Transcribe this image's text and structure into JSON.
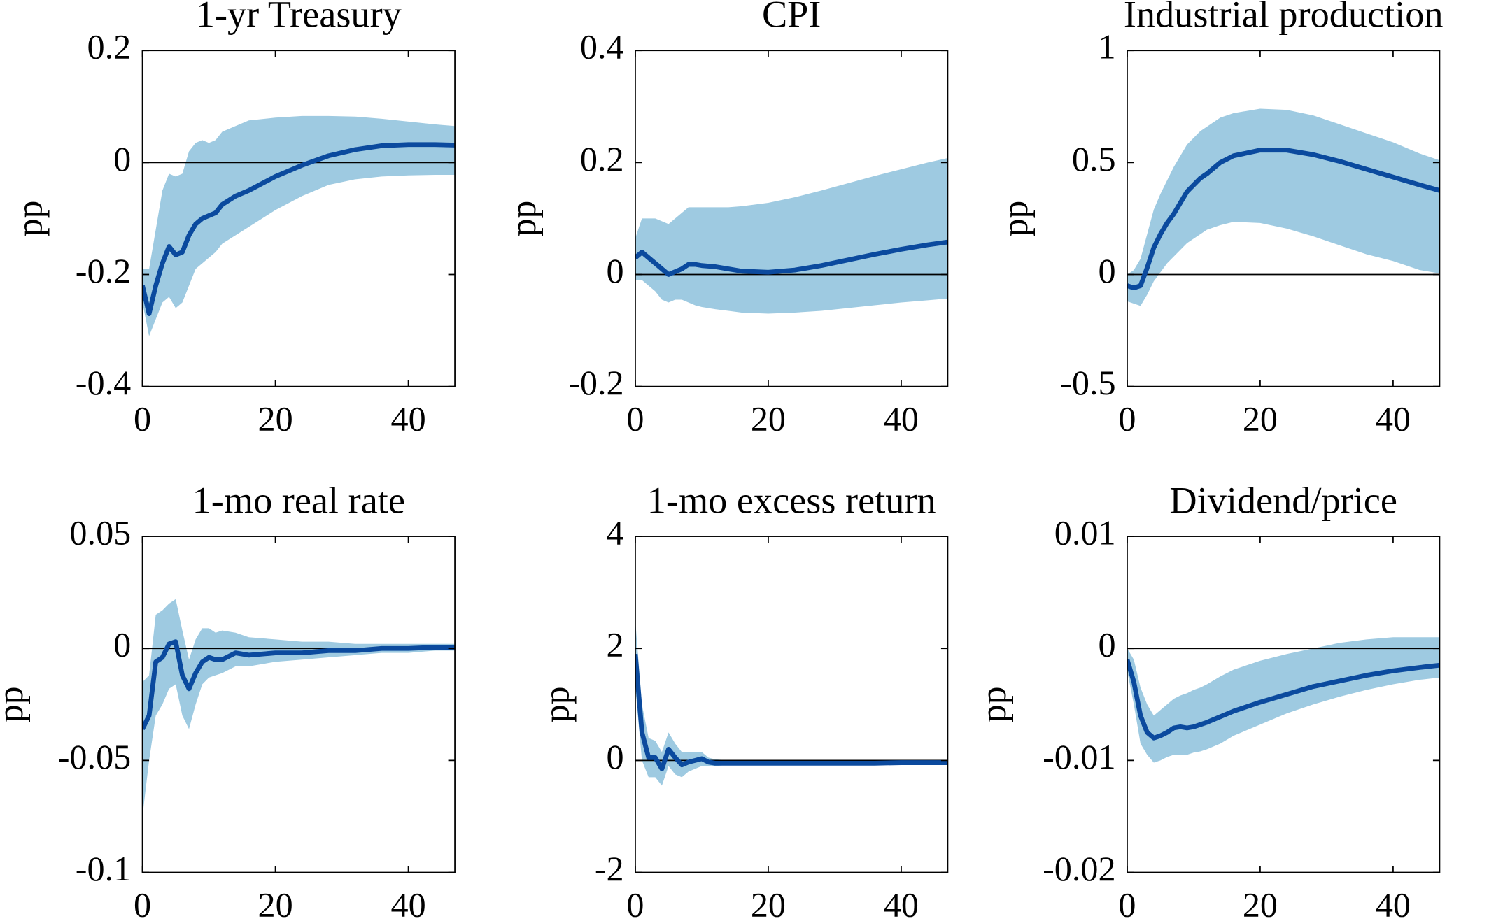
{
  "chart_data": [
    {
      "type": "line",
      "title": "1-yr Treasury",
      "ylabel": "pp",
      "x": [
        0,
        1,
        2,
        3,
        4,
        5,
        6,
        7,
        8,
        9,
        10,
        11,
        12,
        14,
        16,
        20,
        24,
        28,
        32,
        36,
        40,
        44,
        47
      ],
      "xlim": [
        0,
        47
      ],
      "xticks": [
        0,
        20,
        40
      ],
      "ylim": [
        -0.4,
        0.2
      ],
      "yticks": [
        -0.4,
        -0.2,
        0,
        0.2
      ],
      "series": [
        {
          "color": "#0b4a9e",
          "values": [
            -0.22,
            -0.27,
            -0.22,
            -0.18,
            -0.15,
            -0.165,
            -0.16,
            -0.13,
            -0.11,
            -0.1,
            -0.095,
            -0.09,
            -0.075,
            -0.06,
            -0.05,
            -0.025,
            -0.005,
            0.012,
            0.023,
            0.03,
            0.032,
            0.032,
            0.031
          ]
        }
      ],
      "band": {
        "color": "#9ecae1",
        "upper": [
          -0.19,
          -0.19,
          -0.12,
          -0.05,
          -0.02,
          -0.025,
          -0.02,
          0.02,
          0.035,
          0.04,
          0.035,
          0.04,
          0.055,
          0.065,
          0.075,
          0.08,
          0.083,
          0.083,
          0.082,
          0.078,
          0.073,
          0.068,
          0.065
        ],
        "lower": [
          -0.25,
          -0.31,
          -0.28,
          -0.25,
          -0.24,
          -0.26,
          -0.25,
          -0.22,
          -0.19,
          -0.18,
          -0.17,
          -0.16,
          -0.145,
          -0.13,
          -0.115,
          -0.085,
          -0.06,
          -0.04,
          -0.03,
          -0.025,
          -0.023,
          -0.022,
          -0.022
        ]
      }
    },
    {
      "type": "line",
      "title": "CPI",
      "ylabel": "pp",
      "x": [
        0,
        1,
        2,
        3,
        4,
        5,
        6,
        7,
        8,
        9,
        10,
        11,
        12,
        14,
        16,
        20,
        24,
        28,
        32,
        36,
        40,
        44,
        47
      ],
      "xlim": [
        0,
        47
      ],
      "xticks": [
        0,
        20,
        40
      ],
      "ylim": [
        -0.2,
        0.4
      ],
      "yticks": [
        -0.2,
        0,
        0.2,
        0.4
      ],
      "series": [
        {
          "color": "#0b4a9e",
          "values": [
            0.03,
            0.04,
            0.03,
            0.02,
            0.01,
            0.0,
            0.005,
            0.01,
            0.018,
            0.018,
            0.016,
            0.015,
            0.014,
            0.01,
            0.006,
            0.004,
            0.008,
            0.016,
            0.026,
            0.036,
            0.045,
            0.053,
            0.058
          ]
        }
      ],
      "band": {
        "color": "#9ecae1",
        "upper": [
          0.065,
          0.1,
          0.1,
          0.1,
          0.095,
          0.09,
          0.1,
          0.11,
          0.12,
          0.12,
          0.12,
          0.12,
          0.12,
          0.12,
          0.122,
          0.128,
          0.138,
          0.15,
          0.163,
          0.176,
          0.188,
          0.2,
          0.208
        ],
        "lower": [
          -0.01,
          -0.01,
          -0.02,
          -0.03,
          -0.045,
          -0.05,
          -0.045,
          -0.045,
          -0.05,
          -0.055,
          -0.058,
          -0.06,
          -0.062,
          -0.065,
          -0.068,
          -0.07,
          -0.068,
          -0.065,
          -0.06,
          -0.055,
          -0.05,
          -0.046,
          -0.043
        ]
      }
    },
    {
      "type": "line",
      "title": "Industrial production",
      "ylabel": "pp",
      "x": [
        0,
        1,
        2,
        3,
        4,
        5,
        6,
        7,
        8,
        9,
        10,
        11,
        12,
        14,
        16,
        20,
        24,
        28,
        32,
        36,
        40,
        44,
        47
      ],
      "xlim": [
        0,
        47
      ],
      "xticks": [
        0,
        20,
        40
      ],
      "ylim": [
        -0.5,
        1
      ],
      "yticks": [
        -0.5,
        0,
        0.5,
        1
      ],
      "series": [
        {
          "color": "#0b4a9e",
          "values": [
            -0.05,
            -0.06,
            -0.05,
            0.03,
            0.12,
            0.18,
            0.23,
            0.27,
            0.32,
            0.37,
            0.4,
            0.43,
            0.45,
            0.5,
            0.53,
            0.555,
            0.555,
            0.535,
            0.505,
            0.47,
            0.435,
            0.4,
            0.375
          ]
        }
      ],
      "band": {
        "color": "#9ecae1",
        "upper": [
          0.0,
          0.02,
          0.07,
          0.18,
          0.29,
          0.36,
          0.42,
          0.48,
          0.53,
          0.58,
          0.61,
          0.64,
          0.66,
          0.7,
          0.72,
          0.74,
          0.735,
          0.71,
          0.67,
          0.63,
          0.59,
          0.54,
          0.51
        ],
        "lower": [
          -0.12,
          -0.13,
          -0.14,
          -0.09,
          -0.03,
          0.01,
          0.05,
          0.08,
          0.11,
          0.14,
          0.16,
          0.18,
          0.2,
          0.22,
          0.235,
          0.23,
          0.205,
          0.17,
          0.13,
          0.09,
          0.06,
          0.02,
          0.005
        ]
      }
    },
    {
      "type": "line",
      "title": "1-mo real rate",
      "ylabel": "pp",
      "x": [
        0,
        1,
        2,
        3,
        4,
        5,
        6,
        7,
        8,
        9,
        10,
        11,
        12,
        14,
        16,
        20,
        24,
        28,
        32,
        36,
        40,
        44,
        47
      ],
      "xlim": [
        0,
        47
      ],
      "xticks": [
        0,
        20,
        40
      ],
      "ylim": [
        -0.1,
        0.05
      ],
      "yticks": [
        -0.1,
        -0.05,
        0,
        0.05
      ],
      "series": [
        {
          "color": "#0b4a9e",
          "values": [
            -0.036,
            -0.03,
            -0.006,
            -0.004,
            0.002,
            0.003,
            -0.012,
            -0.018,
            -0.011,
            -0.006,
            -0.004,
            -0.005,
            -0.005,
            -0.002,
            -0.003,
            -0.002,
            -0.002,
            -0.001,
            -0.001,
            0.0,
            0.0,
            0.0005,
            0.0005
          ]
        }
      ],
      "band": {
        "color": "#9ecae1",
        "upper": [
          -0.015,
          -0.012,
          0.015,
          0.017,
          0.02,
          0.022,
          0.008,
          -0.005,
          0.004,
          0.009,
          0.009,
          0.007,
          0.008,
          0.007,
          0.005,
          0.004,
          0.003,
          0.003,
          0.002,
          0.002,
          0.002,
          0.002,
          0.002
        ],
        "lower": [
          -0.075,
          -0.05,
          -0.03,
          -0.025,
          -0.018,
          -0.016,
          -0.03,
          -0.036,
          -0.025,
          -0.016,
          -0.013,
          -0.012,
          -0.011,
          -0.008,
          -0.008,
          -0.006,
          -0.005,
          -0.004,
          -0.003,
          -0.002,
          -0.002,
          -0.001,
          -0.001
        ]
      }
    },
    {
      "type": "line",
      "title": "1-mo excess return",
      "ylabel": "pp",
      "x": [
        0,
        1,
        2,
        3,
        4,
        5,
        6,
        7,
        8,
        9,
        10,
        11,
        12,
        14,
        16,
        20,
        24,
        28,
        32,
        36,
        40,
        44,
        47
      ],
      "xlim": [
        0,
        47
      ],
      "xticks": [
        0,
        20,
        40
      ],
      "ylim": [
        -2,
        4
      ],
      "yticks": [
        -2,
        0,
        2,
        4
      ],
      "series": [
        {
          "color": "#0b4a9e",
          "values": [
            1.9,
            0.5,
            0.05,
            0.05,
            -0.15,
            0.2,
            0.05,
            -0.08,
            -0.03,
            0.0,
            0.03,
            -0.03,
            -0.05,
            -0.05,
            -0.05,
            -0.05,
            -0.05,
            -0.05,
            -0.05,
            -0.05,
            -0.04,
            -0.04,
            -0.04
          ]
        }
      ],
      "band": {
        "color": "#9ecae1",
        "upper": [
          2.5,
          1.0,
          0.4,
          0.35,
          0.15,
          0.5,
          0.3,
          0.15,
          0.15,
          0.15,
          0.15,
          0.05,
          0.02,
          0.0,
          -0.02,
          -0.03,
          -0.03,
          -0.03,
          -0.03,
          -0.03,
          -0.02,
          -0.02,
          -0.02
        ],
        "lower": [
          1.3,
          0.0,
          -0.3,
          -0.3,
          -0.45,
          -0.1,
          -0.25,
          -0.3,
          -0.2,
          -0.15,
          -0.1,
          -0.1,
          -0.1,
          -0.08,
          -0.07,
          -0.07,
          -0.07,
          -0.07,
          -0.06,
          -0.06,
          -0.06,
          -0.06,
          -0.06
        ]
      }
    },
    {
      "type": "line",
      "title": "Dividend/price",
      "ylabel": "pp",
      "x": [
        0,
        1,
        2,
        3,
        4,
        5,
        6,
        7,
        8,
        9,
        10,
        11,
        12,
        14,
        16,
        20,
        24,
        28,
        32,
        36,
        40,
        44,
        47
      ],
      "xlim": [
        0,
        47
      ],
      "xticks": [
        0,
        20,
        40
      ],
      "ylim": [
        -0.02,
        0.01
      ],
      "yticks": [
        -0.02,
        -0.01,
        0,
        0.01
      ],
      "series": [
        {
          "color": "#0b4a9e",
          "values": [
            -0.001,
            -0.003,
            -0.006,
            -0.0075,
            -0.008,
            -0.0078,
            -0.0075,
            -0.0071,
            -0.007,
            -0.0071,
            -0.007,
            -0.0068,
            -0.0066,
            -0.0061,
            -0.0056,
            -0.0048,
            -0.0041,
            -0.0034,
            -0.0029,
            -0.0024,
            -0.002,
            -0.0017,
            -0.0015
          ]
        }
      ],
      "band": {
        "color": "#9ecae1",
        "upper": [
          0.0,
          -0.001,
          -0.0035,
          -0.005,
          -0.006,
          -0.0055,
          -0.005,
          -0.0045,
          -0.0042,
          -0.004,
          -0.0037,
          -0.0035,
          -0.0032,
          -0.0025,
          -0.0019,
          -0.0011,
          -0.0005,
          0.0,
          0.0005,
          0.0008,
          0.001,
          0.001,
          0.001
        ],
        "lower": [
          -0.002,
          -0.005,
          -0.0085,
          -0.0095,
          -0.0102,
          -0.01,
          -0.0097,
          -0.0095,
          -0.0095,
          -0.0095,
          -0.0093,
          -0.0092,
          -0.009,
          -0.0085,
          -0.0078,
          -0.0068,
          -0.0058,
          -0.005,
          -0.0043,
          -0.0037,
          -0.0032,
          -0.0028,
          -0.0026
        ]
      }
    }
  ]
}
